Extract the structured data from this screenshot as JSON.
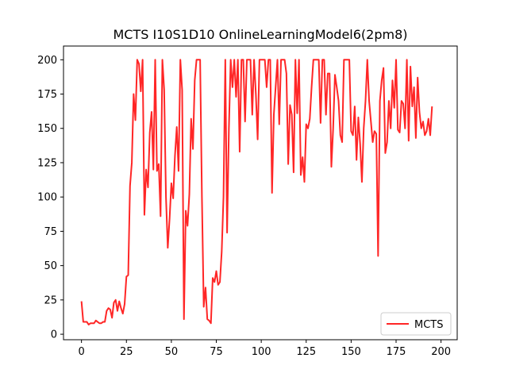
{
  "chart_data": {
    "type": "line",
    "title": "MCTS I10S1D10 OnlineLearningModel6(2pm8)",
    "xlabel": "",
    "ylabel": "",
    "xlim": [
      -10,
      209
    ],
    "ylim": [
      -4,
      210
    ],
    "xticks": [
      0,
      25,
      50,
      75,
      100,
      125,
      150,
      175,
      200
    ],
    "yticks": [
      0,
      25,
      50,
      75,
      100,
      125,
      150,
      175,
      200
    ],
    "grid": false,
    "legend_position": "lower-right",
    "series": [
      {
        "name": "MCTS",
        "color": "#ff0000",
        "values": [
          24,
          9,
          9,
          9,
          7,
          8,
          8,
          8,
          10,
          9,
          8,
          8,
          9,
          9,
          17,
          19,
          18,
          12,
          23,
          25,
          17,
          24,
          19,
          15,
          22,
          42,
          43,
          108,
          125,
          175,
          156,
          200,
          197,
          177,
          200,
          87,
          120,
          107,
          147,
          162,
          120,
          200,
          119,
          124,
          86,
          200,
          178,
          100,
          63,
          84,
          110,
          99,
          130,
          151,
          119,
          200,
          178,
          11,
          90,
          79,
          102,
          157,
          135,
          185,
          200,
          200,
          200,
          100,
          20,
          34,
          11,
          10,
          8,
          41,
          38,
          46,
          36,
          38,
          60,
          100,
          200,
          74,
          150,
          200,
          180,
          200,
          173,
          200,
          133,
          200,
          200,
          155,
          200,
          200,
          200,
          160,
          200,
          175,
          142,
          200,
          200,
          200,
          200,
          180,
          200,
          200,
          103,
          160,
          180,
          200,
          153,
          200,
          200,
          200,
          190,
          124,
          167,
          160,
          118,
          200,
          161,
          200,
          116,
          129,
          111,
          153,
          150,
          157,
          180,
          200,
          200,
          200,
          200,
          154,
          200,
          200,
          160,
          190,
          190,
          122,
          150,
          189,
          180,
          170,
          145,
          140,
          200,
          200,
          200,
          200,
          148,
          145,
          166,
          127,
          158,
          139,
          111,
          150,
          170,
          200,
          170,
          155,
          140,
          148,
          146,
          57,
          170,
          185,
          194,
          132,
          140,
          170,
          150,
          185,
          165,
          200,
          149,
          147,
          170,
          168,
          150,
          200,
          141,
          195,
          166,
          180,
          143,
          187,
          162,
          150,
          155,
          145,
          148,
          157,
          145,
          166
        ]
      }
    ]
  }
}
